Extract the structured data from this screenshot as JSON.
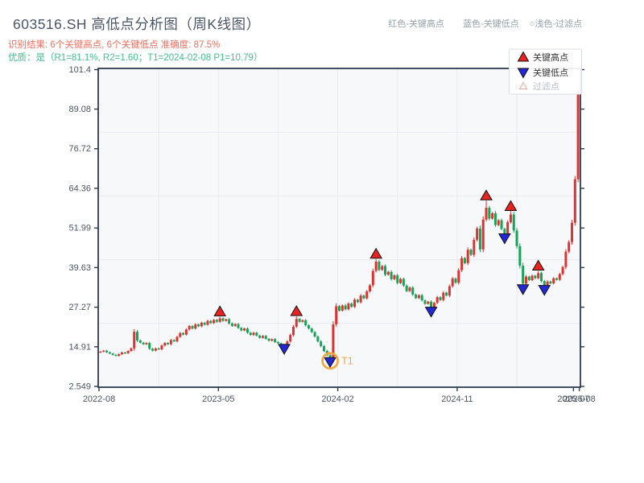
{
  "header": {
    "title": "603516.SH 高低点分析图（周K线图）",
    "subtitle_result": "识别结果: 6个关键高点, 6个关键低点  准确度: 87.5%",
    "subtitle_quality": "优质：是（R1=81.1%, R2=1.60；T1=2024-02-08 P1=10.79）",
    "note_items": [
      "红色-关键高点",
      "蓝色-关键低点",
      "○浅色-过滤点"
    ]
  },
  "legend": {
    "items": [
      {
        "label": "关键高点",
        "marker": "triangle-up"
      },
      {
        "label": "关键低点",
        "marker": "triangle-down"
      },
      {
        "label": "过滤点",
        "marker": "triangle-up-hollow"
      }
    ]
  },
  "colors": {
    "candle_up": "#dd3330",
    "candle_down": "#16a257",
    "key_high_marker": "#e8231f",
    "key_low_marker": "#2427d6",
    "marker_edge": "#111111",
    "t1_annotation": "#f4a63b",
    "title_text": "#4a5568",
    "result_text": "#ee6e5e",
    "quality_text": "#45bd8b",
    "note_text": "#93a0a8",
    "axis_text": "#4a5562",
    "axis_border": "#2d3c52",
    "gridline": "#e8ebef",
    "plot_background": "#f7f8fa",
    "legend_text": "#333333",
    "legend_muted_text": "#b9c1c8",
    "filtered_marker_edge": "#e9a89f"
  },
  "chart_data": {
    "type": "candlestick",
    "period": "weekly",
    "y_axis": {
      "range": [
        2.549,
        101.4
      ],
      "tick_values": [
        101.4,
        89.08,
        76.72,
        64.36,
        51.99,
        39.63,
        27.27,
        14.91,
        2.549
      ],
      "tick_labels": [
        "101.4",
        "89.08",
        "76.72",
        "64.36",
        "51.99",
        "39.63",
        "27.27",
        "14.91",
        "2.549"
      ]
    },
    "x_axis": {
      "ticks": [
        {
          "label": "2022-08",
          "week": 0
        },
        {
          "label": "2023-05",
          "week": 39
        },
        {
          "label": "2024-02",
          "week": 78
        },
        {
          "label": "2024-11",
          "week": 117
        },
        {
          "label": "2025-07",
          "week": 155
        },
        {
          "label": "2025-08",
          "week": 156.9
        }
      ],
      "v_grid_weeks": [
        19.5,
        39,
        58.5,
        78,
        97.5,
        117,
        136.5
      ]
    },
    "first_open": 13.2,
    "weekly_closes": [
      13.4,
      13.7,
      13.2,
      12.8,
      12.4,
      12.1,
      12.6,
      13.1,
      12.9,
      13.6,
      14.4,
      19.6,
      16.9,
      16.2,
      15.7,
      16.1,
      14.3,
      13.7,
      14.4,
      14.1,
      15.3,
      16.1,
      15.7,
      17.0,
      16.6,
      18.0,
      19.2,
      18.7,
      20.3,
      21.4,
      20.6,
      21.9,
      21.3,
      22.4,
      21.8,
      23.0,
      22.3,
      23.3,
      22.7,
      23.8,
      23.0,
      23.5,
      22.2,
      21.4,
      22.0,
      20.8,
      20.0,
      20.6,
      19.3,
      18.6,
      19.3,
      18.4,
      17.7,
      18.3,
      17.4,
      16.8,
      17.3,
      16.4,
      16.0,
      15.6,
      15.3,
      16.6,
      18.6,
      21.2,
      23.6,
      22.7,
      23.2,
      21.6,
      20.6,
      19.5,
      18.1,
      16.6,
      15.1,
      13.6,
      12.3,
      11.2,
      21.9,
      27.6,
      26.2,
      27.8,
      26.6,
      28.4,
      27.4,
      29.6,
      28.8,
      30.9,
      30.0,
      32.2,
      34.1,
      38.6,
      41.5,
      38.9,
      40.1,
      37.4,
      38.3,
      36.0,
      37.2,
      34.8,
      36.1,
      34.0,
      32.3,
      33.4,
      31.2,
      30.1,
      31.0,
      29.4,
      28.3,
      29.0,
      27.2,
      28.6,
      30.4,
      29.5,
      31.8,
      30.9,
      33.8,
      36.2,
      34.9,
      38.8,
      42.6,
      41.0,
      45.2,
      43.6,
      48.3,
      51.8,
      45.3,
      54.6,
      58.3,
      54.9,
      56.6,
      52.9,
      54.4,
      51.7,
      50.3,
      53.8,
      56.2,
      51.2,
      46.3,
      40.2,
      34.6,
      36.8,
      35.7,
      37.1,
      36.3,
      37.9,
      35.4,
      34.1,
      35.3,
      34.7,
      36.3,
      35.8,
      37.6,
      39.8,
      44.6,
      47.6,
      53.6,
      67.2,
      94.5
    ],
    "key_highs": [
      {
        "week": 39,
        "price": 24.3
      },
      {
        "week": 64,
        "price": 24.4
      },
      {
        "week": 90,
        "price": 42.3
      },
      {
        "week": 126,
        "price": 60.5
      },
      {
        "week": 134,
        "price": 57.2
      },
      {
        "week": 143,
        "price": 38.6
      }
    ],
    "key_lows": [
      {
        "week": 60,
        "price": 14.9
      },
      {
        "week": 75,
        "price": 10.79
      },
      {
        "week": 108,
        "price": 26.5
      },
      {
        "week": 132,
        "price": 49.4
      },
      {
        "week": 138,
        "price": 33.5
      },
      {
        "week": 145,
        "price": 33.3
      }
    ],
    "t1": {
      "week": 75,
      "price": 10.79,
      "label": "T1"
    },
    "final_week_high": 95.3
  }
}
